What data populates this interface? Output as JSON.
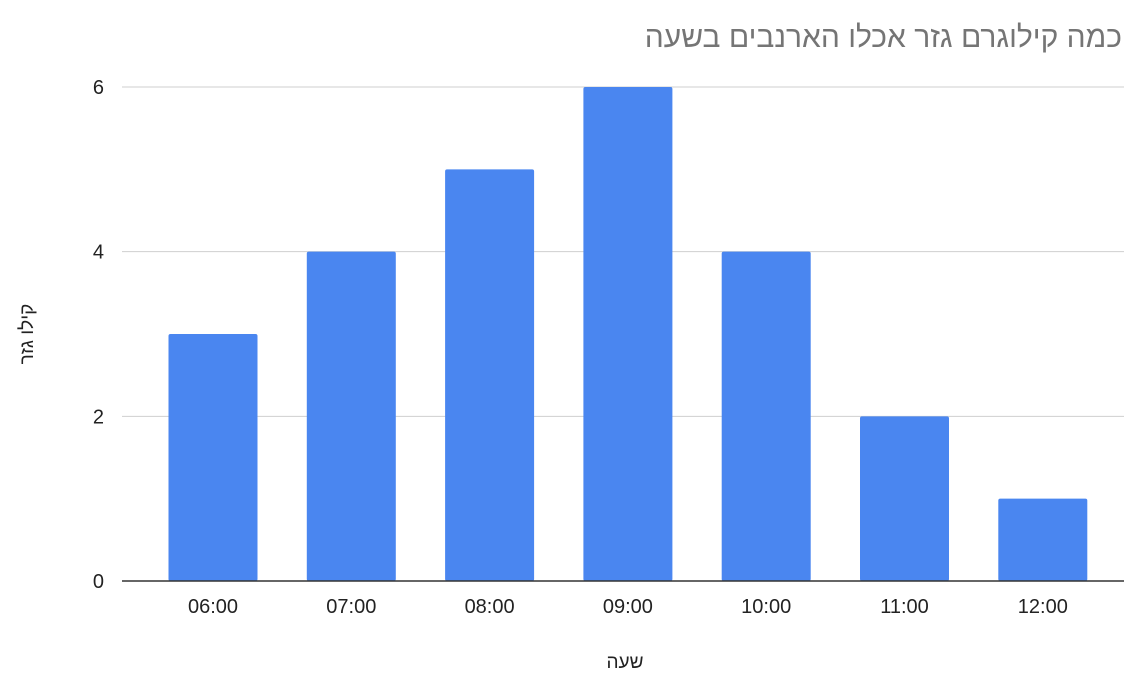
{
  "chart_data": {
    "type": "bar",
    "title": "כמה קילוגרם גזר אכלו הארנבים בשעה",
    "xlabel": "שעה",
    "ylabel": "קילו גזר",
    "categories": [
      "06:00",
      "07:00",
      "08:00",
      "09:00",
      "10:00",
      "11:00",
      "12:00"
    ],
    "values": [
      3,
      4,
      5,
      6,
      4,
      2,
      1
    ],
    "ylim": [
      0,
      6
    ],
    "yticks": [
      0,
      2,
      4,
      6
    ],
    "grid": true,
    "legend": "none",
    "bar_color": "#4a86f0",
    "grid_color": "#cfcfcf",
    "axis_color": "#333333"
  }
}
